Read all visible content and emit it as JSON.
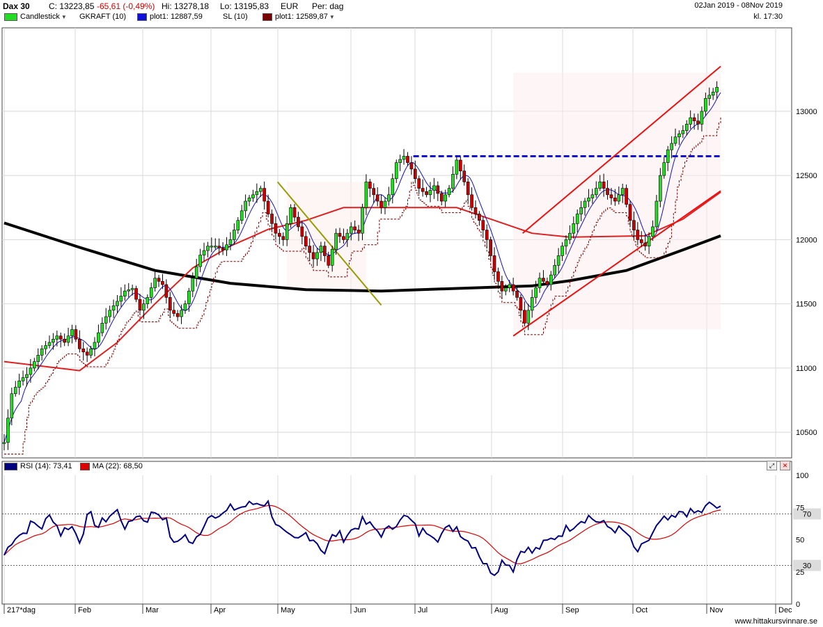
{
  "header": {
    "symbol": "Dax 30",
    "close": "C: 13223,85",
    "change": "-65,61 (-0,49%)",
    "high": "Hi: 13278,18",
    "low": "Lo: 13195,83",
    "currency": "EUR",
    "period": "Per: dag",
    "date_range": "02Jan 2019 - 08Nov 2019",
    "time": "kl. 17:30"
  },
  "legend": [
    {
      "label": "Candlestick",
      "color": "#22dd22"
    },
    {
      "label": "GKRAFT (10)",
      "color": ""
    },
    {
      "label": "plot1: 12887,59",
      "color": "#1010dd"
    },
    {
      "label": "SL (10)",
      "color": ""
    },
    {
      "label": "plot1: 12589,87",
      "color": "#7a0000"
    }
  ],
  "rsi_legend": [
    {
      "label": "RSI (14): 73,41",
      "color": "#000080"
    },
    {
      "label": "MA (22): 68,50",
      "color": "#dd0000"
    }
  ],
  "footer": "www.hittakursvinnare.se",
  "colors": {
    "up": "#22dd22",
    "down": "#cc0000",
    "ma200": "#000000",
    "ma50": "#e02020",
    "ma10": "#1010cc",
    "stop": "#7a0000",
    "rsi": "#000080",
    "rsi_ma": "#dd0000"
  },
  "icons": [
    "zoom-icon",
    "close-icon",
    "dropdown-arrow-icon"
  ],
  "chart_data": [
    {
      "type": "candlestick",
      "title": "Dax 30",
      "x_tick_labels": [
        "217*dag",
        "Feb",
        "Mar",
        "Apr",
        "May",
        "Jun",
        "Jul",
        "Aug",
        "Sep",
        "Oct",
        "Nov",
        "Dec"
      ],
      "y_tick_labels": [
        "10500",
        "11000",
        "11500",
        "12000",
        "12500",
        "13000"
      ],
      "ylim": [
        10300,
        13650
      ],
      "grid": true,
      "series": [
        {
          "name": "Candlestick",
          "type": "candlestick",
          "close_path": [
            [
              0,
              10420
            ],
            [
              4,
              10800
            ],
            [
              8,
              10900
            ],
            [
              12,
              10950
            ],
            [
              16,
              11050
            ],
            [
              20,
              11150
            ],
            [
              24,
              11200
            ],
            [
              28,
              11250
            ],
            [
              32,
              11200
            ],
            [
              36,
              11300
            ],
            [
              40,
              11150
            ],
            [
              44,
              11100
            ],
            [
              48,
              11200
            ],
            [
              52,
              11350
            ],
            [
              56,
              11450
            ],
            [
              60,
              11520
            ],
            [
              64,
              11600
            ],
            [
              68,
              11620
            ],
            [
              72,
              11450
            ],
            [
              76,
              11550
            ],
            [
              80,
              11700
            ],
            [
              84,
              11650
            ],
            [
              88,
              11450
            ],
            [
              92,
              11400
            ],
            [
              96,
              11500
            ],
            [
              100,
              11700
            ],
            [
              104,
              11880
            ],
            [
              108,
              11950
            ],
            [
              112,
              11950
            ],
            [
              116,
              11920
            ],
            [
              120,
              12000
            ],
            [
              124,
              12150
            ],
            [
              128,
              12300
            ],
            [
              132,
              12350
            ],
            [
              136,
              12400
            ],
            [
              140,
              12200
            ],
            [
              144,
              12050
            ],
            [
              148,
              12000
            ],
            [
              152,
              12250
            ],
            [
              156,
              12100
            ],
            [
              160,
              11950
            ],
            [
              164,
              11850
            ],
            [
              168,
              11950
            ],
            [
              172,
              11800
            ],
            [
              176,
              12050
            ],
            [
              180,
              12000
            ],
            [
              184,
              12100
            ],
            [
              188,
              12050
            ],
            [
              192,
              12450
            ],
            [
              196,
              12350
            ],
            [
              200,
              12250
            ],
            [
              204,
              12350
            ],
            [
              208,
              12600
            ],
            [
              212,
              12650
            ],
            [
              216,
              12550
            ],
            [
              220,
              12400
            ],
            [
              224,
              12350
            ],
            [
              228,
              12420
            ],
            [
              232,
              12300
            ],
            [
              236,
              12400
            ],
            [
              240,
              12620
            ],
            [
              244,
              12450
            ],
            [
              248,
              12250
            ],
            [
              252,
              12150
            ],
            [
              256,
              12000
            ],
            [
              260,
              11750
            ],
            [
              264,
              11600
            ],
            [
              268,
              11650
            ],
            [
              272,
              11550
            ],
            [
              276,
              11350
            ],
            [
              280,
              11550
            ],
            [
              284,
              11700
            ],
            [
              288,
              11650
            ],
            [
              292,
              11800
            ],
            [
              296,
              11950
            ],
            [
              300,
              12050
            ],
            [
              304,
              12200
            ],
            [
              308,
              12300
            ],
            [
              312,
              12350
            ],
            [
              316,
              12450
            ],
            [
              320,
              12350
            ],
            [
              324,
              12300
            ],
            [
              328,
              12400
            ],
            [
              332,
              12150
            ],
            [
              336,
              12000
            ],
            [
              340,
              11950
            ],
            [
              344,
              12100
            ],
            [
              348,
              12500
            ],
            [
              352,
              12700
            ],
            [
              356,
              12800
            ],
            [
              360,
              12850
            ],
            [
              364,
              12950
            ],
            [
              368,
              12900
            ],
            [
              372,
              13100
            ],
            [
              376,
              13150
            ],
            [
              380,
              13224
            ]
          ]
        },
        {
          "name": "plot1: 12887,59",
          "type": "line"
        },
        {
          "name": "plot1: 12589,87",
          "type": "step"
        }
      ],
      "overlays": {
        "ma200_path": [
          [
            0,
            12130
          ],
          [
            40,
            11940
          ],
          [
            80,
            11760
          ],
          [
            120,
            11660
          ],
          [
            160,
            11610
          ],
          [
            200,
            11600
          ],
          [
            240,
            11620
          ],
          [
            280,
            11640
          ],
          [
            300,
            11680
          ],
          [
            330,
            11760
          ],
          [
            360,
            11920
          ],
          [
            380,
            12030
          ]
        ],
        "ma50_path": [
          [
            0,
            11050
          ],
          [
            40,
            10980
          ],
          [
            60,
            11200
          ],
          [
            80,
            11500
          ],
          [
            100,
            11780
          ],
          [
            120,
            11950
          ],
          [
            140,
            12080
          ],
          [
            160,
            12150
          ],
          [
            180,
            12250
          ],
          [
            200,
            12250
          ],
          [
            240,
            12250
          ],
          [
            260,
            12150
          ],
          [
            280,
            12050
          ],
          [
            300,
            12020
          ],
          [
            340,
            12030
          ],
          [
            360,
            12160
          ],
          [
            380,
            12370
          ]
        ],
        "horizontal_line": 12650,
        "trendlines": [
          {
            "from": [
              145,
              12450
            ],
            "to": [
              200,
              11490
            ],
            "color": "#9a9a00"
          },
          {
            "from": [
              270,
              11250
            ],
            "to": [
              380,
              12380
            ],
            "color": "#ee1111"
          },
          {
            "from": [
              275,
              12050
            ],
            "to": [
              380,
              13350
            ],
            "color": "#ee1111"
          }
        ]
      }
    },
    {
      "type": "line",
      "title": "",
      "y_tick_labels": [
        "0",
        "25",
        "50",
        "75",
        "100"
      ],
      "ylim": [
        0,
        100
      ],
      "reference_lines": [
        70,
        30
      ],
      "series": [
        {
          "name": "RSI (14): 73,41",
          "values_path": [
            [
              0,
              38
            ],
            [
              5,
              52
            ],
            [
              10,
              55
            ],
            [
              15,
              63
            ],
            [
              20,
              60
            ],
            [
              25,
              70
            ],
            [
              30,
              55
            ],
            [
              35,
              62
            ],
            [
              40,
              50
            ],
            [
              45,
              70
            ],
            [
              50,
              60
            ],
            [
              55,
              68
            ],
            [
              60,
              72
            ],
            [
              65,
              58
            ],
            [
              70,
              70
            ],
            [
              75,
              65
            ],
            [
              80,
              72
            ],
            [
              85,
              68
            ],
            [
              90,
              45
            ],
            [
              95,
              55
            ],
            [
              100,
              45
            ],
            [
              105,
              60
            ],
            [
              110,
              72
            ],
            [
              115,
              68
            ],
            [
              120,
              74
            ],
            [
              125,
              75
            ],
            [
              130,
              77
            ],
            [
              135,
              79
            ],
            [
              140,
              78
            ],
            [
              145,
              60
            ],
            [
              150,
              52
            ],
            [
              155,
              48
            ],
            [
              160,
              55
            ],
            [
              165,
              50
            ],
            [
              170,
              40
            ],
            [
              175,
              55
            ],
            [
              180,
              52
            ],
            [
              185,
              58
            ],
            [
              190,
              64
            ],
            [
              195,
              60
            ],
            [
              200,
              55
            ],
            [
              205,
              58
            ],
            [
              210,
              68
            ],
            [
              215,
              66
            ],
            [
              220,
              55
            ],
            [
              225,
              58
            ],
            [
              230,
              52
            ],
            [
              235,
              58
            ],
            [
              240,
              60
            ],
            [
              245,
              50
            ],
            [
              250,
              45
            ],
            [
              255,
              30
            ],
            [
              260,
              25
            ],
            [
              265,
              35
            ],
            [
              270,
              28
            ],
            [
              275,
              45
            ],
            [
              280,
              40
            ],
            [
              285,
              45
            ],
            [
              290,
              50
            ],
            [
              295,
              55
            ],
            [
              300,
              60
            ],
            [
              305,
              65
            ],
            [
              310,
              68
            ],
            [
              315,
              64
            ],
            [
              320,
              60
            ],
            [
              325,
              58
            ],
            [
              330,
              55
            ],
            [
              335,
              40
            ],
            [
              340,
              45
            ],
            [
              345,
              58
            ],
            [
              350,
              65
            ],
            [
              355,
              65
            ],
            [
              360,
              72
            ],
            [
              365,
              70
            ],
            [
              370,
              72
            ],
            [
              375,
              78
            ],
            [
              380,
              73
            ]
          ]
        },
        {
          "name": "MA (22): 68,50"
        }
      ]
    }
  ]
}
